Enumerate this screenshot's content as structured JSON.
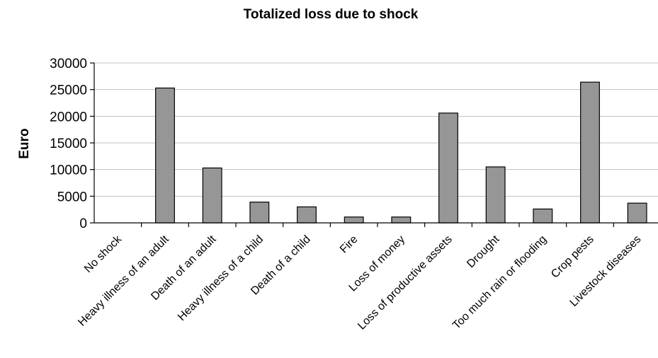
{
  "chart_data": {
    "type": "bar",
    "title": "Totalized loss due to shock",
    "xlabel": "",
    "ylabel": "Euro",
    "ylim": [
      0,
      30000
    ],
    "yticks": [
      0,
      5000,
      10000,
      15000,
      20000,
      25000,
      30000
    ],
    "grid": true,
    "legend": "none",
    "bar_color": "#969696",
    "categories": [
      "No shock",
      "Heavy illness of an adult",
      "Death of an adult",
      "Heavy illness of a child",
      "Death of a child",
      "Fire",
      "Loss of money",
      "Loss of productive assets",
      "Drought",
      "Too much rain or flooding",
      "Crop pests",
      "Livestock diseases"
    ],
    "values": [
      0,
      25300,
      10300,
      3900,
      3000,
      1100,
      1100,
      20600,
      10500,
      2600,
      26400,
      3700
    ]
  }
}
